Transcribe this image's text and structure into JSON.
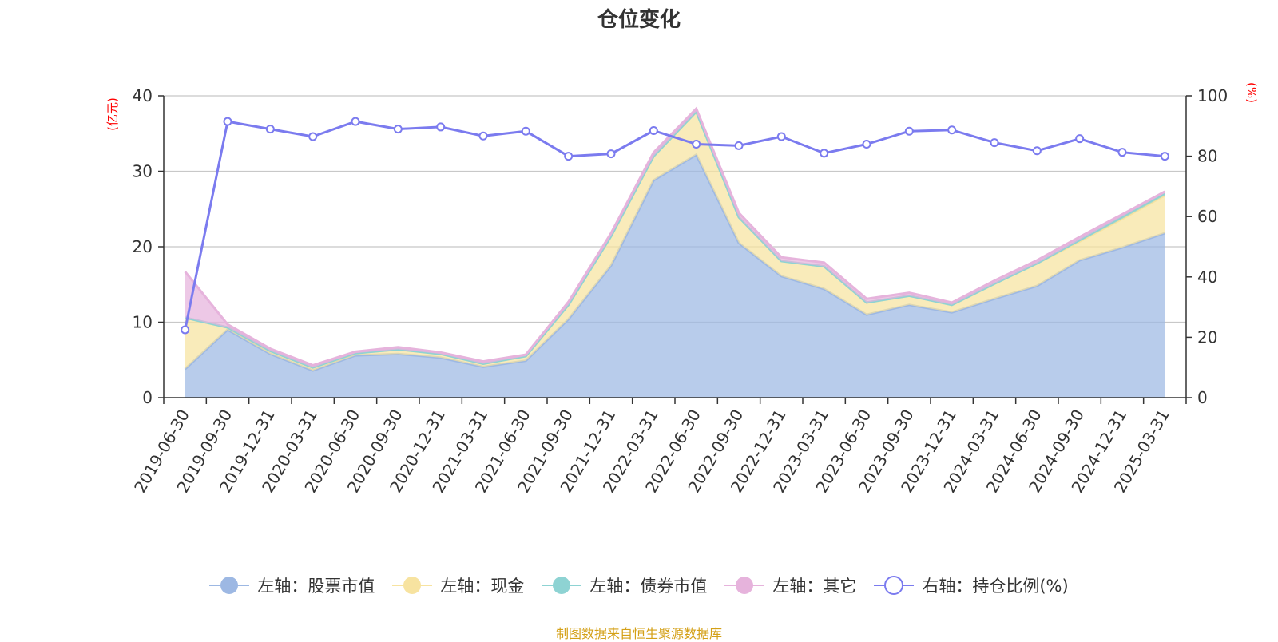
{
  "source_note": "制图数据来自恒生聚源数据库",
  "colors": {
    "stock": "#9db8e3",
    "cash": "#f7e3a0",
    "bond": "#8ed3d3",
    "other": "#e6b3dc",
    "ratio": "#7b7bef",
    "unit": "#ff0000",
    "grid": "#c8c8c8"
  },
  "chart_data": {
    "type": "area",
    "title": "仓位变化",
    "left_axis": {
      "unit": "(亿元)",
      "ylim": [
        0,
        40
      ],
      "ticks": [
        0,
        10,
        20,
        30,
        40
      ]
    },
    "right_axis": {
      "unit": "(%)",
      "ylim": [
        0,
        100
      ],
      "ticks": [
        0,
        20,
        40,
        60,
        80,
        100
      ]
    },
    "grid": true,
    "legend_position": "bottom",
    "categories": [
      "2019-06-30",
      "2019-09-30",
      "2019-12-31",
      "2020-03-31",
      "2020-06-30",
      "2020-09-30",
      "2020-12-31",
      "2021-03-31",
      "2021-06-30",
      "2021-09-30",
      "2021-12-31",
      "2022-03-31",
      "2022-06-30",
      "2022-09-30",
      "2022-12-31",
      "2023-03-31",
      "2023-06-30",
      "2023-09-30",
      "2023-12-31",
      "2024-03-31",
      "2024-06-30",
      "2024-09-30",
      "2024-12-31",
      "2025-03-31"
    ],
    "series": [
      {
        "name": "左轴：股票市值",
        "axis": "left",
        "stacked": true,
        "color": "#9db8e3",
        "values": [
          3.8,
          9.0,
          5.8,
          3.6,
          5.6,
          5.8,
          5.3,
          4.1,
          4.9,
          10.4,
          17.5,
          28.8,
          32.2,
          20.5,
          16.1,
          14.4,
          11.0,
          12.3,
          11.3,
          13.1,
          14.8,
          18.2,
          19.9,
          21.8
        ]
      },
      {
        "name": "左轴：现金",
        "axis": "left",
        "stacked": true,
        "color": "#f7e3a0",
        "values": [
          6.8,
          0.3,
          0.4,
          0.4,
          0.3,
          0.6,
          0.5,
          0.4,
          0.6,
          1.9,
          3.9,
          3.2,
          5.7,
          3.4,
          2.0,
          3.0,
          1.6,
          1.2,
          1.0,
          2.0,
          3.0,
          2.5,
          3.8,
          5.0
        ]
      },
      {
        "name": "左轴：债券市值",
        "axis": "left",
        "stacked": true,
        "color": "#8ed3d3",
        "values": [
          0,
          0,
          0,
          0,
          0,
          0,
          0,
          0,
          0,
          0,
          0,
          0,
          0,
          0,
          0,
          0,
          0,
          0,
          0,
          0,
          0,
          0.2,
          0.3,
          0.3
        ]
      },
      {
        "name": "左轴：其它",
        "axis": "left",
        "stacked": true,
        "color": "#e6b3dc",
        "values": [
          6.1,
          0.4,
          0.3,
          0.3,
          0.2,
          0.3,
          0.2,
          0.3,
          0.2,
          0.4,
          0.4,
          0.5,
          0.4,
          0.6,
          0.5,
          0.5,
          0.5,
          0.4,
          0.3,
          0.4,
          0.4,
          0.4,
          0.3,
          0.2
        ]
      },
      {
        "name": "右轴：持仓比例(%)",
        "axis": "right",
        "type": "line",
        "color": "#7b7bef",
        "values": [
          22.5,
          91.5,
          89.0,
          86.5,
          91.5,
          89.0,
          89.7,
          86.7,
          88.3,
          80.0,
          80.8,
          88.5,
          84.0,
          83.5,
          86.5,
          81.0,
          84.0,
          88.3,
          88.7,
          84.5,
          81.8,
          85.8,
          81.3,
          80.0
        ]
      }
    ]
  }
}
